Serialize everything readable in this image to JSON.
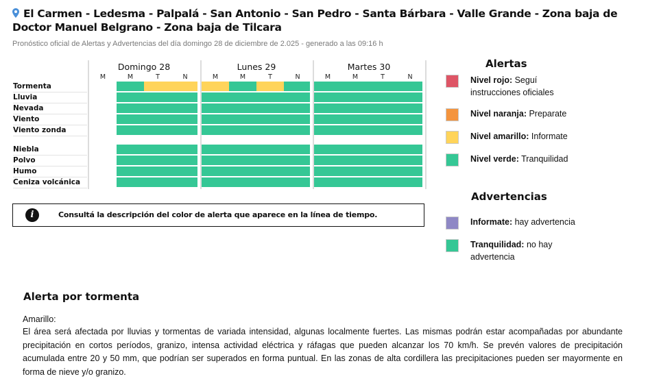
{
  "header": {
    "title": "El Carmen - Ledesma - Palpalá - San Antonio - San Pedro - Santa Bárbara - Valle Grande - Zona baja de Doctor Manuel Belgrano - Zona baja de Tilcara",
    "subtitle": "Pronóstico oficial de Alertas y Advertencias del día domingo 28 de diciembre de 2.025 - generado a las 09:16 h",
    "pin_icon": "location-pin-icon"
  },
  "colors": {
    "verde": "#35c795",
    "amarillo": "#ffd45a",
    "naranja": "#f4943e",
    "rojo": "#de5566",
    "violeta": "#8f88c5"
  },
  "timeline": {
    "days": [
      {
        "label": "Domingo 28",
        "slots": [
          "M",
          "M",
          "T",
          "N"
        ]
      },
      {
        "label": "Lunes 29",
        "slots": [
          "M",
          "M",
          "T",
          "N"
        ]
      },
      {
        "label": "Martes 30",
        "slots": [
          "M",
          "M",
          "T",
          "N"
        ]
      }
    ],
    "alert_rows": [
      {
        "label": "Tormenta",
        "levels": [
          null,
          "verde",
          "amarillo",
          "amarillo",
          "amarillo",
          "verde",
          "amarillo",
          "verde",
          "verde",
          "verde",
          "verde",
          "verde"
        ]
      },
      {
        "label": "Lluvia",
        "levels": [
          null,
          "verde",
          "verde",
          "verde",
          "verde",
          "verde",
          "verde",
          "verde",
          "verde",
          "verde",
          "verde",
          "verde"
        ]
      },
      {
        "label": "Nevada",
        "levels": [
          null,
          "verde",
          "verde",
          "verde",
          "verde",
          "verde",
          "verde",
          "verde",
          "verde",
          "verde",
          "verde",
          "verde"
        ]
      },
      {
        "label": "Viento",
        "levels": [
          null,
          "verde",
          "verde",
          "verde",
          "verde",
          "verde",
          "verde",
          "verde",
          "verde",
          "verde",
          "verde",
          "verde"
        ]
      },
      {
        "label": "Viento zonda",
        "levels": [
          null,
          "verde",
          "verde",
          "verde",
          "verde",
          "verde",
          "verde",
          "verde",
          "verde",
          "verde",
          "verde",
          "verde"
        ]
      }
    ],
    "warning_rows": [
      {
        "label": "Niebla",
        "levels": [
          null,
          "verde",
          "verde",
          "verde",
          "verde",
          "verde",
          "verde",
          "verde",
          "verde",
          "verde",
          "verde",
          "verde"
        ]
      },
      {
        "label": "Polvo",
        "levels": [
          null,
          "verde",
          "verde",
          "verde",
          "verde",
          "verde",
          "verde",
          "verde",
          "verde",
          "verde",
          "verde",
          "verde"
        ]
      },
      {
        "label": "Humo",
        "levels": [
          null,
          "verde",
          "verde",
          "verde",
          "verde",
          "verde",
          "verde",
          "verde",
          "verde",
          "verde",
          "verde",
          "verde"
        ]
      },
      {
        "label": "Ceniza volcánica",
        "levels": [
          null,
          "verde",
          "verde",
          "verde",
          "verde",
          "verde",
          "verde",
          "verde",
          "verde",
          "verde",
          "verde",
          "verde"
        ]
      }
    ]
  },
  "info_box": {
    "icon": "info-icon",
    "icon_glyph": "i",
    "text": "Consultá la descripción del color de alerta que aparece en la línea de tiempo."
  },
  "legend": {
    "alertas_title": "Alertas",
    "alertas": [
      {
        "name": "Nivel rojo:",
        "desc": " Seguí instrucciones oficiales",
        "color": "#de5566"
      },
      {
        "name": "Nivel naranja:",
        "desc": " Preparate",
        "color": "#f4943e"
      },
      {
        "name": "Nivel amarillo:",
        "desc": " Informate",
        "color": "#ffd45a"
      },
      {
        "name": "Nivel verde:",
        "desc": " Tranquilidad",
        "color": "#35c795"
      }
    ],
    "advertencias_title": "Advertencias",
    "advertencias": [
      {
        "name": "Informate:",
        "desc": " hay advertencia",
        "color": "#8f88c5"
      },
      {
        "name": "Tranquilidad:",
        "desc": " no hay advertencia",
        "color": "#35c795"
      }
    ]
  },
  "description": {
    "title": "Alerta por tormenta",
    "level": "Amarillo:",
    "text": "El área será afectada por lluvias y tormentas de variada intensidad, algunas localmente fuertes. Las mismas podrán estar acompañadas por abundante precipitación en cortos períodos, granizo, intensa actividad eléctrica y ráfagas que pueden alcanzar los 70 km/h. Se prevén valores de precipitación acumulada entre 20 y 50 mm, que podrían ser superados en forma puntual. En las zonas de alta cordillera las precipitaciones pueden ser mayormente en forma de nieve y/o granizo."
  }
}
